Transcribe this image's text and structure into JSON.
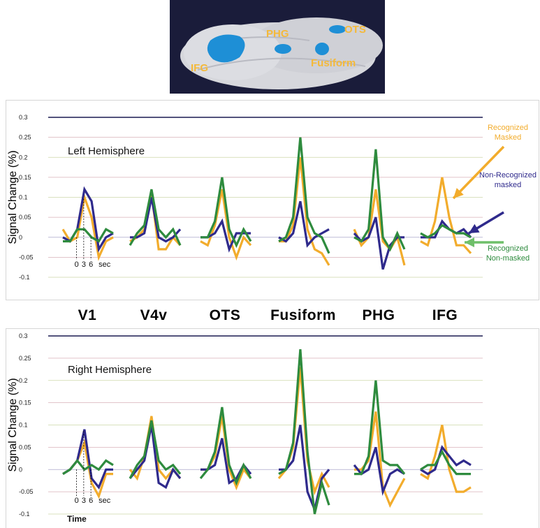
{
  "brain_image": {
    "labels": [
      "IFG",
      "PHG",
      "OTS",
      "Fusiform"
    ],
    "colors": {
      "surface": "#d8d8dc",
      "activation": "#1e8fd6",
      "label": "#f4b93a",
      "background": "#1a1c3a"
    }
  },
  "regions": [
    "V1",
    "V4v",
    "OTS",
    "Fusiform",
    "PHG",
    "IFG"
  ],
  "legend": [
    {
      "name": "Recognized\nMasked",
      "color": "#f2ac2c"
    },
    {
      "name": "Non-Recognized\nmasked",
      "color": "#2f2a8c"
    },
    {
      "name": "Recognized\nNon-masked",
      "color": "#2e8b3e"
    }
  ],
  "chart_data": [
    {
      "type": "line",
      "title": "Left Hemisphere",
      "ylabel": "Signal Change  (%)",
      "ylim": [
        -0.1,
        0.3
      ],
      "yticks": [
        "0.3",
        "0.25",
        "0.2",
        "0.15",
        "0.1",
        "0.05",
        "0",
        "-0.05",
        "-0.1"
      ],
      "time_ticks": [
        "0",
        "3",
        "6",
        "sec"
      ],
      "time_label": "",
      "series": [
        {
          "name": "Recognized Masked",
          "color": "#f2ac2c",
          "values": {
            "V1": [
              0.02,
              -0.01,
              0.0,
              0.1,
              0.05,
              -0.05,
              -0.01,
              0.0
            ],
            "V4v": [
              -0.01,
              0.0,
              0.02,
              0.11,
              -0.03,
              -0.03,
              0.0,
              -0.02
            ],
            "OTS": [
              -0.01,
              -0.02,
              0.03,
              0.12,
              0.0,
              -0.05,
              0.0,
              -0.02
            ],
            "Fusiform": [
              -0.01,
              -0.01,
              0.03,
              0.2,
              0.02,
              -0.03,
              -0.04,
              -0.07
            ],
            "PHG": [
              0.02,
              -0.02,
              0.0,
              0.12,
              -0.01,
              -0.03,
              0.0,
              -0.07
            ],
            "IFG": [
              -0.01,
              -0.02,
              0.04,
              0.15,
              0.05,
              -0.02,
              -0.02,
              -0.04
            ]
          }
        },
        {
          "name": "Non-Recognized masked",
          "color": "#2f2a8c",
          "values": {
            "V1": [
              0.0,
              -0.01,
              0.02,
              0.12,
              0.09,
              -0.03,
              0.0,
              0.01
            ],
            "V4v": [
              0.0,
              0.0,
              0.01,
              0.1,
              0.0,
              -0.01,
              0.0,
              0.02
            ],
            "OTS": [
              0.0,
              0.0,
              0.01,
              0.04,
              -0.03,
              0.01,
              0.01,
              0.01
            ],
            "Fusiform": [
              0.0,
              -0.01,
              0.01,
              0.09,
              -0.02,
              0.0,
              0.01,
              0.02
            ],
            "PHG": [
              0.01,
              -0.01,
              0.0,
              0.05,
              -0.08,
              -0.02,
              0.0,
              0.0
            ],
            "IFG": [
              0.0,
              0.0,
              0.0,
              0.04,
              0.02,
              0.01,
              0.02,
              0.0
            ]
          }
        },
        {
          "name": "Recognized Non-masked",
          "color": "#2e8b3e",
          "values": {
            "V1": [
              -0.01,
              -0.01,
              0.02,
              0.02,
              0.0,
              -0.01,
              0.02,
              0.01
            ],
            "V4v": [
              -0.02,
              0.01,
              0.03,
              0.12,
              0.02,
              0.0,
              0.02,
              -0.02
            ],
            "OTS": [
              0.0,
              0.0,
              0.04,
              0.15,
              0.02,
              -0.02,
              0.02,
              -0.01
            ],
            "Fusiform": [
              -0.01,
              0.0,
              0.05,
              0.25,
              0.05,
              0.01,
              0.0,
              -0.04
            ],
            "PHG": [
              0.0,
              -0.01,
              0.02,
              0.22,
              0.0,
              -0.03,
              0.01,
              -0.03
            ],
            "IFG": [
              0.01,
              0.0,
              0.01,
              0.03,
              0.02,
              0.01,
              0.01,
              0.0
            ]
          }
        }
      ]
    },
    {
      "type": "line",
      "title": "Right Hemisphere",
      "ylabel": "Signal Change  (%)",
      "ylim": [
        -0.1,
        0.3
      ],
      "yticks": [
        "0.3",
        "0.25",
        "0.2",
        "0.15",
        "0.1",
        "0.05",
        "0",
        "-0.05",
        "-0.1"
      ],
      "time_ticks": [
        "0",
        "3",
        "6",
        "sec"
      ],
      "time_label": "Time",
      "series": [
        {
          "name": "Recognized Masked",
          "color": "#f2ac2c",
          "values": {
            "V1": [
              -0.01,
              0.0,
              0.02,
              0.06,
              -0.03,
              -0.06,
              -0.01,
              -0.01
            ],
            "V4v": [
              0.0,
              -0.02,
              0.03,
              0.12,
              0.0,
              -0.02,
              0.0,
              -0.02
            ],
            "OTS": [
              0.0,
              0.0,
              0.03,
              0.12,
              0.0,
              -0.04,
              0.0,
              -0.02
            ],
            "Fusiform": [
              -0.02,
              0.0,
              0.05,
              0.23,
              0.02,
              -0.05,
              -0.01,
              -0.04
            ],
            "PHG": [
              0.0,
              0.0,
              0.02,
              0.13,
              -0.04,
              -0.08,
              -0.05,
              -0.02
            ],
            "IFG": [
              -0.01,
              -0.02,
              0.03,
              0.1,
              0.0,
              -0.05,
              -0.05,
              -0.04
            ]
          }
        },
        {
          "name": "Non-Recognized masked",
          "color": "#2f2a8c",
          "values": {
            "V1": [
              -0.01,
              0.0,
              0.02,
              0.09,
              -0.02,
              -0.04,
              0.0,
              0.0
            ],
            "V4v": [
              -0.02,
              0.0,
              0.02,
              0.1,
              -0.03,
              -0.04,
              0.0,
              -0.02
            ],
            "OTS": [
              0.0,
              0.0,
              0.01,
              0.07,
              -0.03,
              -0.02,
              0.01,
              -0.01
            ],
            "Fusiform": [
              0.0,
              0.0,
              0.02,
              0.1,
              -0.05,
              -0.09,
              -0.02,
              0.0
            ],
            "PHG": [
              0.01,
              -0.01,
              0.0,
              0.05,
              -0.05,
              -0.01,
              0.0,
              -0.01
            ],
            "IFG": [
              0.0,
              -0.01,
              0.0,
              0.05,
              0.03,
              0.01,
              0.02,
              0.01
            ]
          }
        },
        {
          "name": "Recognized Non-masked",
          "color": "#2e8b3e",
          "values": {
            "V1": [
              -0.01,
              0.0,
              0.02,
              0.0,
              0.01,
              0.0,
              0.02,
              0.01
            ],
            "V4v": [
              -0.02,
              0.01,
              0.03,
              0.11,
              0.02,
              0.0,
              0.01,
              -0.01
            ],
            "OTS": [
              -0.02,
              0.0,
              0.04,
              0.14,
              0.01,
              -0.03,
              0.01,
              -0.02
            ],
            "Fusiform": [
              -0.01,
              0.0,
              0.06,
              0.27,
              0.04,
              -0.1,
              -0.03,
              -0.08
            ],
            "PHG": [
              -0.01,
              -0.01,
              0.03,
              0.2,
              0.02,
              0.01,
              0.01,
              -0.01
            ],
            "IFG": [
              0.0,
              0.01,
              0.01,
              0.04,
              0.01,
              -0.01,
              -0.01,
              -0.01
            ]
          }
        }
      ]
    }
  ]
}
